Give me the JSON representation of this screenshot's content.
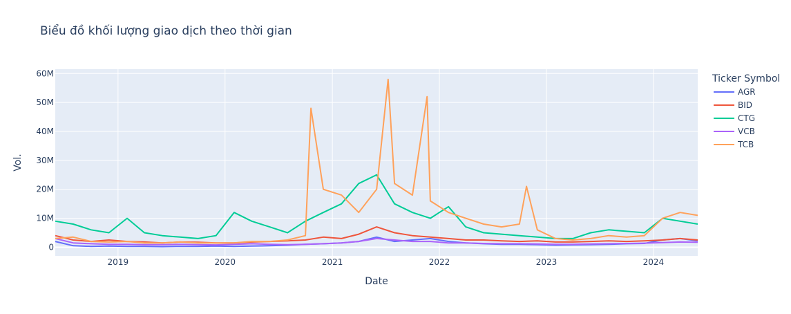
{
  "chart_data": {
    "type": "line",
    "title": "Biểu đồ khối lượng giao dịch theo thời gian",
    "xlabel": "Date",
    "ylabel": "Vol.",
    "legend_title": "Ticker Symbol",
    "legend_position": "right",
    "grid": true,
    "xlim": [
      "2018-06-01",
      "2024-05-31"
    ],
    "ylim": [
      -3000000,
      61500000
    ],
    "x_ticks": [
      {
        "date": "2019-01-01",
        "label": "2019"
      },
      {
        "date": "2020-01-01",
        "label": "2020"
      },
      {
        "date": "2021-01-01",
        "label": "2021"
      },
      {
        "date": "2022-01-01",
        "label": "2022"
      },
      {
        "date": "2023-01-01",
        "label": "2023"
      },
      {
        "date": "2024-01-01",
        "label": "2024"
      }
    ],
    "y_ticks": [
      {
        "value": 0,
        "label": "0"
      },
      {
        "value": 10000000,
        "label": "10M"
      },
      {
        "value": 20000000,
        "label": "20M"
      },
      {
        "value": 30000000,
        "label": "30M"
      },
      {
        "value": 40000000,
        "label": "40M"
      },
      {
        "value": 50000000,
        "label": "50M"
      },
      {
        "value": 60000000,
        "label": "60M"
      }
    ],
    "series": [
      {
        "name": "AGR",
        "color": "#636efa",
        "x": [
          "2018-06-01",
          "2018-08-01",
          "2018-10-01",
          "2018-12-01",
          "2019-02-01",
          "2019-04-01",
          "2019-06-01",
          "2019-08-01",
          "2019-10-01",
          "2019-12-01",
          "2020-02-01",
          "2020-04-01",
          "2020-06-01",
          "2020-08-01",
          "2020-10-01",
          "2020-12-01",
          "2021-02-01",
          "2021-04-01",
          "2021-06-01",
          "2021-08-01",
          "2021-10-01",
          "2021-12-01",
          "2022-02-01",
          "2022-04-01",
          "2022-06-01",
          "2022-08-01",
          "2022-10-01",
          "2022-12-01",
          "2023-02-01",
          "2023-04-01",
          "2023-06-01",
          "2023-08-01",
          "2023-10-01",
          "2023-12-01",
          "2024-02-01",
          "2024-04-01",
          "2024-05-31"
        ],
        "y": [
          2000000,
          500000,
          300000,
          400000,
          300000,
          300000,
          200000,
          300000,
          300000,
          400000,
          300000,
          400000,
          500000,
          700000,
          1000000,
          1200000,
          1500000,
          2000000,
          3500000,
          2000000,
          2500000,
          3000000,
          2000000,
          1500000,
          1200000,
          1000000,
          1000000,
          900000,
          700000,
          800000,
          900000,
          1000000,
          1200000,
          1300000,
          2500000,
          3000000,
          2200000
        ]
      },
      {
        "name": "BID",
        "color": "#ef553b",
        "x": [
          "2018-06-01",
          "2018-08-01",
          "2018-10-01",
          "2018-12-01",
          "2019-02-01",
          "2019-04-01",
          "2019-06-01",
          "2019-08-01",
          "2019-10-01",
          "2019-12-01",
          "2020-02-01",
          "2020-04-01",
          "2020-06-01",
          "2020-08-01",
          "2020-10-01",
          "2020-12-01",
          "2021-02-01",
          "2021-04-01",
          "2021-06-01",
          "2021-08-01",
          "2021-10-01",
          "2021-12-01",
          "2022-02-01",
          "2022-04-01",
          "2022-06-01",
          "2022-08-01",
          "2022-10-01",
          "2022-12-01",
          "2023-02-01",
          "2023-04-01",
          "2023-06-01",
          "2023-08-01",
          "2023-10-01",
          "2023-12-01",
          "2024-02-01",
          "2024-04-01",
          "2024-05-31"
        ],
        "y": [
          4000000,
          2500000,
          2000000,
          2500000,
          2000000,
          1800000,
          1500000,
          1800000,
          1700000,
          1500000,
          1500000,
          1800000,
          2000000,
          2200000,
          2500000,
          3500000,
          3000000,
          4500000,
          7000000,
          5000000,
          4000000,
          3500000,
          3000000,
          2500000,
          2500000,
          2200000,
          2000000,
          2200000,
          1800000,
          1800000,
          2000000,
          2200000,
          2000000,
          2200000,
          2500000,
          3000000,
          2500000
        ]
      },
      {
        "name": "CTG",
        "color": "#00cc96",
        "x": [
          "2018-06-01",
          "2018-08-01",
          "2018-10-01",
          "2018-12-01",
          "2019-02-01",
          "2019-04-01",
          "2019-06-01",
          "2019-08-01",
          "2019-10-01",
          "2019-12-01",
          "2020-02-01",
          "2020-04-01",
          "2020-06-01",
          "2020-08-01",
          "2020-10-01",
          "2020-12-01",
          "2021-02-01",
          "2021-04-01",
          "2021-06-01",
          "2021-08-01",
          "2021-10-01",
          "2021-12-01",
          "2022-02-01",
          "2022-04-01",
          "2022-06-01",
          "2022-08-01",
          "2022-10-01",
          "2022-12-01",
          "2023-02-01",
          "2023-04-01",
          "2023-06-01",
          "2023-08-01",
          "2023-10-01",
          "2023-12-01",
          "2024-02-01",
          "2024-04-01",
          "2024-05-31"
        ],
        "y": [
          9000000,
          8000000,
          6000000,
          5000000,
          10000000,
          5000000,
          4000000,
          3500000,
          3000000,
          4000000,
          12000000,
          9000000,
          7000000,
          5000000,
          9000000,
          12000000,
          15000000,
          22000000,
          25000000,
          15000000,
          12000000,
          10000000,
          14000000,
          7000000,
          5000000,
          4500000,
          4000000,
          3500000,
          3000000,
          3000000,
          5000000,
          6000000,
          5500000,
          5000000,
          10000000,
          9000000,
          8000000
        ]
      },
      {
        "name": "VCB",
        "color": "#ab63fa",
        "x": [
          "2018-06-01",
          "2018-08-01",
          "2018-10-01",
          "2018-12-01",
          "2019-02-01",
          "2019-04-01",
          "2019-06-01",
          "2019-08-01",
          "2019-10-01",
          "2019-12-01",
          "2020-02-01",
          "2020-04-01",
          "2020-06-01",
          "2020-08-01",
          "2020-10-01",
          "2020-12-01",
          "2021-02-01",
          "2021-04-01",
          "2021-06-01",
          "2021-08-01",
          "2021-10-01",
          "2021-12-01",
          "2022-02-01",
          "2022-04-01",
          "2022-06-01",
          "2022-08-01",
          "2022-10-01",
          "2022-12-01",
          "2023-02-01",
          "2023-04-01",
          "2023-06-01",
          "2023-08-01",
          "2023-10-01",
          "2023-12-01",
          "2024-02-01",
          "2024-04-01",
          "2024-05-31"
        ],
        "y": [
          3000000,
          1500000,
          1200000,
          1000000,
          1000000,
          900000,
          900000,
          1000000,
          900000,
          800000,
          1000000,
          1200000,
          1000000,
          900000,
          1000000,
          1200000,
          1500000,
          2000000,
          3000000,
          2500000,
          2000000,
          2000000,
          1500000,
          1500000,
          1300000,
          1200000,
          1200000,
          1100000,
          1000000,
          1000000,
          1100000,
          1200000,
          1300000,
          1400000,
          1600000,
          1800000,
          1700000
        ]
      },
      {
        "name": "TCB",
        "color": "#ffa15a",
        "x": [
          "2018-06-01",
          "2018-08-01",
          "2018-10-01",
          "2018-12-01",
          "2019-02-01",
          "2019-04-01",
          "2019-06-01",
          "2019-08-01",
          "2019-10-01",
          "2019-12-01",
          "2020-02-01",
          "2020-04-01",
          "2020-06-01",
          "2020-08-01",
          "2020-10-01",
          "2020-10-20",
          "2020-12-01",
          "2021-02-01",
          "2021-04-01",
          "2021-06-01",
          "2021-07-10",
          "2021-08-01",
          "2021-10-01",
          "2021-11-20",
          "2021-12-01",
          "2022-02-01",
          "2022-04-01",
          "2022-06-01",
          "2022-08-01",
          "2022-10-01",
          "2022-10-25",
          "2022-12-01",
          "2023-02-01",
          "2023-04-01",
          "2023-06-01",
          "2023-08-01",
          "2023-10-01",
          "2023-12-01",
          "2024-02-01",
          "2024-04-01",
          "2024-05-31"
        ],
        "y": [
          3000000,
          3500000,
          2000000,
          1800000,
          2000000,
          1500000,
          1500000,
          1800000,
          1500000,
          1500000,
          1500000,
          2000000,
          2000000,
          2500000,
          4000000,
          48000000,
          20000000,
          18000000,
          12000000,
          20000000,
          58000000,
          22000000,
          18000000,
          52000000,
          16000000,
          12000000,
          10000000,
          8000000,
          7000000,
          8000000,
          21000000,
          6000000,
          3000000,
          2500000,
          3000000,
          4000000,
          3500000,
          4000000,
          10000000,
          12000000,
          11000000
        ]
      }
    ]
  }
}
